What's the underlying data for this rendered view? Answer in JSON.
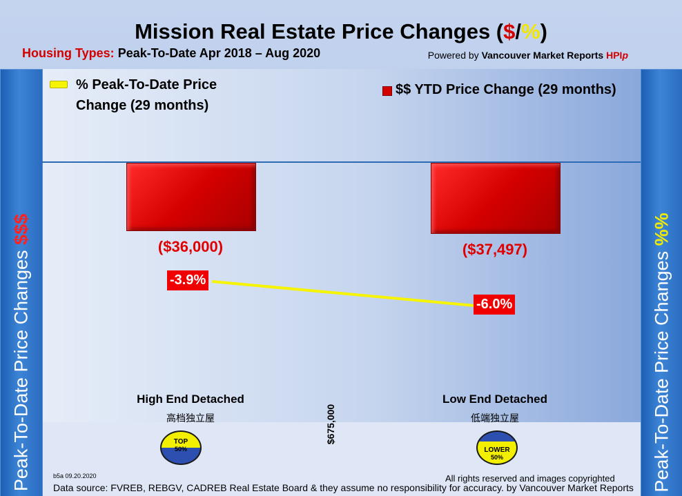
{
  "header": {
    "title_prefix": "Mission Real Estate Price Changes (",
    "title_dollar": "$",
    "title_slash": "/",
    "title_pct": "%",
    "title_suffix": ")",
    "subtitle_label": "Housing Types:",
    "subtitle_period": "Peak-To-Date Apr 2018 – Aug 2020",
    "powered_prefix": "Powered by",
    "powered_brand": "Vancouver Market Reports",
    "powered_hpi": "HPI",
    "powered_hpi_p": "p"
  },
  "side": {
    "left_text": "Peak-To-Date Price Changes",
    "left_symbol": "$$$",
    "right_text": "Peak-To-Date  Price  Changes",
    "right_symbol": "%%"
  },
  "legend": {
    "line_label_1": "% Peak-To-Date Price",
    "line_label_2": "Change (29 months)",
    "bar_label": "$$ YTD Price Change (29 months)"
  },
  "chart_data": {
    "type": "bar+line",
    "categories": [
      "High End Detached",
      "Low End Detached"
    ],
    "categories_cn": [
      "高档独立屋",
      "低端独立屋"
    ],
    "series": [
      {
        "name": "$$ YTD Price Change (29 months)",
        "type": "bar",
        "values": [
          -36000,
          -37497
        ],
        "labels": [
          "($36,000)",
          "($37,497)"
        ],
        "color": "#d40000"
      },
      {
        "name": "% Peak-To-Date Price Change (29 months)",
        "type": "line",
        "values": [
          -3.9,
          -6.0
        ],
        "labels": [
          "-3.9%",
          "-6.0%"
        ],
        "color": "#f6f400"
      }
    ],
    "divider_label": "$675,000",
    "badges": [
      {
        "line1": "TOP",
        "line2": "50%"
      },
      {
        "line1": "LOWER",
        "line2": "50%"
      }
    ]
  },
  "footer": {
    "version": "b5a 09.20.2020",
    "rights": "All rights reserved and  images copyrighted",
    "source": "Data source: FVREB, REBGV, CADREB Real Estate Board & they assume no responsibility for accuracy. by Vancouver Market Reports"
  }
}
